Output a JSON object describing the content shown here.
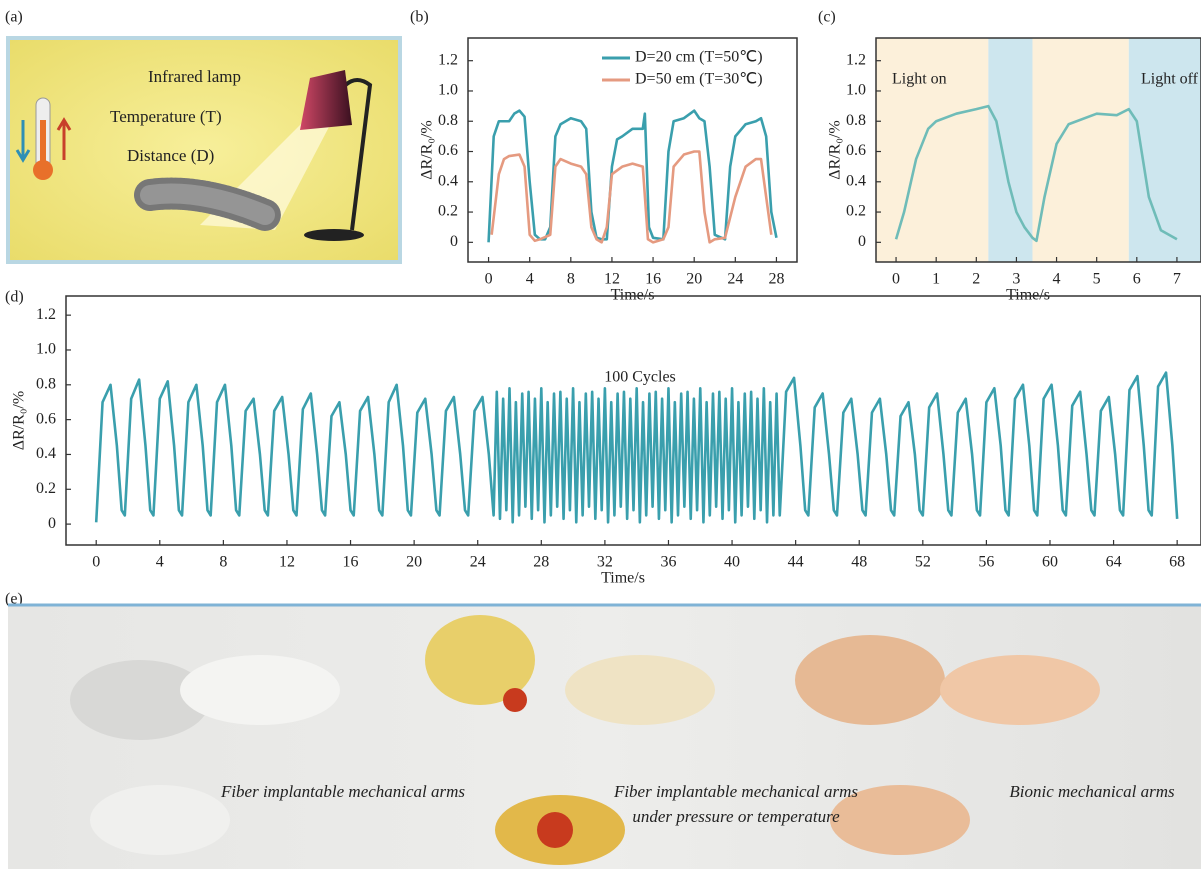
{
  "panel_labels": [
    "(a)",
    "(b)",
    "(c)",
    "(d)",
    "(e)"
  ],
  "illustration_a": {
    "labels": [
      "Infrared lamp",
      "Temperature (T)",
      "Distance (D)"
    ]
  },
  "illustration_e": {
    "captions": [
      [
        "Fiber implantable mechanical arms"
      ],
      [
        "Fiber implantable mechanical arms",
        "under pressure or temperature"
      ],
      [
        "Bionic mechanical arms"
      ]
    ]
  },
  "chart_data": [
    {
      "type": "line",
      "x_label": "Time/s",
      "y_label": "ΔR/R₀/%",
      "xlim": [
        -2,
        30
      ],
      "ylim": [
        -0.13,
        1.35
      ],
      "xticks": [
        0,
        4,
        8,
        12,
        16,
        20,
        24,
        28
      ],
      "yticks": [
        0,
        0.2,
        0.4,
        0.6,
        0.8,
        {
          "value": 1,
          "label": "1.0"
        },
        1.2
      ],
      "legend": "upper right",
      "series": [
        {
          "name": "D=20 cm (T=50℃)",
          "color": "#3a9fad",
          "x": [
            0,
            0.5,
            1,
            2,
            2.5,
            3,
            3.5,
            4,
            4.5,
            5,
            5.5,
            6,
            6.5,
            7,
            8,
            9,
            9.5,
            10,
            10.5,
            11,
            11.5,
            12,
            12.5,
            13,
            14,
            15,
            15.2,
            15.6,
            16,
            17,
            17.5,
            18,
            19,
            20,
            20.5,
            21,
            21.5,
            22,
            23,
            23.5,
            24,
            25,
            26,
            26.5,
            27,
            27.5,
            28
          ],
          "values": [
            0,
            0.7,
            0.8,
            0.8,
            0.85,
            0.87,
            0.83,
            0.4,
            0.05,
            0.02,
            0.02,
            0.1,
            0.7,
            0.78,
            0.82,
            0.8,
            0.75,
            0.2,
            0.03,
            0.02,
            0.02,
            0.5,
            0.68,
            0.7,
            0.75,
            0.75,
            0.85,
            0.1,
            0.03,
            0.02,
            0.6,
            0.8,
            0.82,
            0.87,
            0.82,
            0.8,
            0.5,
            0.05,
            0.02,
            0.5,
            0.7,
            0.78,
            0.8,
            0.82,
            0.7,
            0.2,
            0.03
          ]
        },
        {
          "name": "D=50 em (T=30℃)",
          "color": "#e59a80",
          "x": [
            0.3,
            1,
            1.5,
            2,
            3,
            3.5,
            4,
            4.5,
            5,
            6,
            6.5,
            7,
            8,
            9,
            9.5,
            10,
            10.5,
            11,
            11.5,
            12,
            13,
            14,
            15,
            15.5,
            16,
            17,
            17.5,
            18,
            19,
            20,
            20.5,
            21,
            21.5,
            22,
            23,
            24,
            25,
            26,
            26.5,
            27,
            27.5
          ],
          "values": [
            0.05,
            0.45,
            0.55,
            0.57,
            0.58,
            0.5,
            0.05,
            0.01,
            0.02,
            0.05,
            0.5,
            0.55,
            0.52,
            0.5,
            0.45,
            0.1,
            0.02,
            0,
            0.1,
            0.45,
            0.5,
            0.52,
            0.5,
            0.02,
            0,
            0.02,
            0.1,
            0.5,
            0.58,
            0.6,
            0.6,
            0.2,
            0,
            0.02,
            0.03,
            0.3,
            0.5,
            0.55,
            0.55,
            0.3,
            0.05
          ]
        }
      ]
    },
    {
      "type": "line",
      "x_label": "Time/s",
      "y_label": "ΔR/R₀/%",
      "xlim": [
        -0.5,
        7.6
      ],
      "ylim": [
        -0.13,
        1.35
      ],
      "xticks": [
        0,
        1,
        2,
        3,
        4,
        5,
        6,
        7
      ],
      "yticks": [
        0,
        0.2,
        0.4,
        0.6,
        0.8,
        {
          "value": 1,
          "label": "1.0"
        },
        1.2
      ],
      "annotations": [
        "Light on",
        "Light off"
      ],
      "bands": [
        {
          "from": -0.5,
          "to": 2.3,
          "color": "#fcf0da"
        },
        {
          "from": 2.3,
          "to": 3.4,
          "color": "#cde6ee"
        },
        {
          "from": 3.4,
          "to": 5.8,
          "color": "#fcf0da"
        },
        {
          "from": 5.8,
          "to": 7.6,
          "color": "#cde6ee"
        }
      ],
      "series": [
        {
          "color": "#6fbcb8",
          "x": [
            0,
            0.2,
            0.5,
            0.8,
            1,
            1.5,
            2,
            2.3,
            2.5,
            2.8,
            3,
            3.2,
            3.4,
            3.5,
            3.7,
            4,
            4.3,
            5,
            5.5,
            5.8,
            6,
            6.3,
            6.6,
            7
          ],
          "values": [
            0.02,
            0.2,
            0.55,
            0.75,
            0.8,
            0.85,
            0.88,
            0.9,
            0.8,
            0.4,
            0.2,
            0.1,
            0.03,
            0.01,
            0.3,
            0.65,
            0.78,
            0.85,
            0.84,
            0.88,
            0.8,
            0.3,
            0.08,
            0.02
          ]
        }
      ]
    },
    {
      "type": "line",
      "x_label": "Time/s",
      "y_label": "ΔR/R₀/%",
      "xlim": [
        -1.9,
        69.5
      ],
      "ylim": [
        -0.12,
        1.31
      ],
      "xticks": [
        0,
        4,
        8,
        12,
        16,
        20,
        24,
        28,
        32,
        36,
        40,
        44,
        48,
        52,
        56,
        60,
        64,
        68
      ],
      "yticks": [
        0,
        0.2,
        0.4,
        0.6,
        0.8,
        {
          "value": 1,
          "label": "1.0"
        },
        1.2
      ],
      "annotations": [
        "100 Cycles"
      ],
      "series": [
        {
          "color": "#3a9fad",
          "x": [
            0,
            0.4,
            0.9,
            1.3,
            1.6,
            1.8,
            2.2,
            2.7,
            3.1,
            3.4,
            3.6,
            4.0,
            4.5,
            4.9,
            5.2,
            5.4,
            5.8,
            6.3,
            6.7,
            7.0,
            7.2,
            7.6,
            8.1,
            8.5,
            8.8,
            9.0,
            9.4,
            9.9,
            10.3,
            10.6,
            10.8,
            11.2,
            11.7,
            12.1,
            12.4,
            12.6,
            13.0,
            13.5,
            13.9,
            14.2,
            14.4,
            14.8,
            15.3,
            15.7,
            16.0,
            16.2,
            16.6,
            17.1,
            17.5,
            17.8,
            18.0,
            18.4,
            18.9,
            19.3,
            19.6,
            19.8,
            20.2,
            20.7,
            21.1,
            21.4,
            21.6,
            22.0,
            22.5,
            22.9,
            23.2,
            23.4,
            23.8,
            24.3,
            24.7,
            25.0,
            25.2,
            25.4,
            25.6,
            25.8,
            26.0,
            26.2,
            26.4,
            26.6,
            26.8,
            27.0,
            27.2,
            27.4,
            27.6,
            27.8,
            28.0,
            28.2,
            28.4,
            28.6,
            28.8,
            29.0,
            29.2,
            29.4,
            29.6,
            29.8,
            30.0,
            30.2,
            30.4,
            30.6,
            30.8,
            31.0,
            31.2,
            31.4,
            31.6,
            31.8,
            32.0,
            32.2,
            32.4,
            32.6,
            32.8,
            33.0,
            33.2,
            33.4,
            33.6,
            33.8,
            34.0,
            34.2,
            34.4,
            34.6,
            34.8,
            35.0,
            35.2,
            35.4,
            35.6,
            35.8,
            36.0,
            36.2,
            36.4,
            36.6,
            36.8,
            37.0,
            37.2,
            37.4,
            37.6,
            37.8,
            38.0,
            38.2,
            38.4,
            38.6,
            38.8,
            39.0,
            39.2,
            39.4,
            39.6,
            39.8,
            40.0,
            40.2,
            40.4,
            40.6,
            40.8,
            41.0,
            41.2,
            41.4,
            41.6,
            41.8,
            42.0,
            42.2,
            42.4,
            42.6,
            42.8,
            43.0,
            43.4,
            43.9,
            44.3,
            44.6,
            44.8,
            45.2,
            45.7,
            46.1,
            46.4,
            46.6,
            47.0,
            47.5,
            47.9,
            48.2,
            48.4,
            48.8,
            49.3,
            49.7,
            50.0,
            50.2,
            50.6,
            51.1,
            51.5,
            51.8,
            52.0,
            52.4,
            52.9,
            53.3,
            53.6,
            53.8,
            54.2,
            54.7,
            55.1,
            55.4,
            55.6,
            56.0,
            56.5,
            56.9,
            57.2,
            57.4,
            57.8,
            58.3,
            58.7,
            59.0,
            59.2,
            59.6,
            60.1,
            60.5,
            60.8,
            61.0,
            61.4,
            61.9,
            62.3,
            62.6,
            62.8,
            63.2,
            63.7,
            64.1,
            64.4,
            64.6,
            65.0,
            65.5,
            65.9,
            66.2,
            66.4,
            66.8,
            67.3,
            67.7,
            68.0
          ],
          "values": [
            0.01,
            0.7,
            0.8,
            0.45,
            0.08,
            0.05,
            0.72,
            0.83,
            0.45,
            0.08,
            0.05,
            0.72,
            0.82,
            0.45,
            0.08,
            0.05,
            0.7,
            0.8,
            0.45,
            0.08,
            0.05,
            0.7,
            0.8,
            0.45,
            0.08,
            0.05,
            0.65,
            0.72,
            0.4,
            0.08,
            0.05,
            0.65,
            0.73,
            0.4,
            0.08,
            0.05,
            0.66,
            0.75,
            0.4,
            0.08,
            0.05,
            0.62,
            0.7,
            0.4,
            0.08,
            0.05,
            0.65,
            0.73,
            0.4,
            0.08,
            0.05,
            0.7,
            0.8,
            0.45,
            0.08,
            0.05,
            0.64,
            0.72,
            0.4,
            0.08,
            0.05,
            0.65,
            0.73,
            0.4,
            0.08,
            0.05,
            0.65,
            0.73,
            0.4,
            0.05,
            0.76,
            0.03,
            0.72,
            0.08,
            0.78,
            0.01,
            0.7,
            0.05,
            0.75,
            0.1,
            0.76,
            0.03,
            0.72,
            0.08,
            0.78,
            0.01,
            0.7,
            0.05,
            0.75,
            0.1,
            0.76,
            0.03,
            0.72,
            0.08,
            0.78,
            0.01,
            0.7,
            0.05,
            0.75,
            0.1,
            0.76,
            0.03,
            0.72,
            0.08,
            0.78,
            0.01,
            0.7,
            0.05,
            0.75,
            0.1,
            0.76,
            0.03,
            0.72,
            0.08,
            0.78,
            0.01,
            0.7,
            0.05,
            0.75,
            0.1,
            0.76,
            0.03,
            0.72,
            0.08,
            0.78,
            0.01,
            0.7,
            0.05,
            0.75,
            0.1,
            0.76,
            0.03,
            0.72,
            0.08,
            0.78,
            0.01,
            0.7,
            0.05,
            0.75,
            0.1,
            0.76,
            0.03,
            0.72,
            0.08,
            0.78,
            0.01,
            0.7,
            0.05,
            0.75,
            0.1,
            0.76,
            0.03,
            0.72,
            0.08,
            0.78,
            0.01,
            0.7,
            0.05,
            0.75,
            0.05,
            0.76,
            0.84,
            0.45,
            0.08,
            0.05,
            0.67,
            0.75,
            0.4,
            0.08,
            0.05,
            0.64,
            0.72,
            0.4,
            0.08,
            0.05,
            0.64,
            0.72,
            0.4,
            0.08,
            0.05,
            0.62,
            0.7,
            0.4,
            0.08,
            0.05,
            0.67,
            0.75,
            0.4,
            0.08,
            0.05,
            0.64,
            0.72,
            0.4,
            0.08,
            0.05,
            0.7,
            0.78,
            0.45,
            0.08,
            0.05,
            0.72,
            0.8,
            0.45,
            0.08,
            0.05,
            0.72,
            0.8,
            0.45,
            0.08,
            0.05,
            0.68,
            0.76,
            0.4,
            0.08,
            0.05,
            0.65,
            0.73,
            0.4,
            0.08,
            0.05,
            0.77,
            0.85,
            0.45,
            0.08,
            0.05,
            0.79,
            0.87,
            0.45,
            0.03
          ]
        }
      ]
    }
  ]
}
